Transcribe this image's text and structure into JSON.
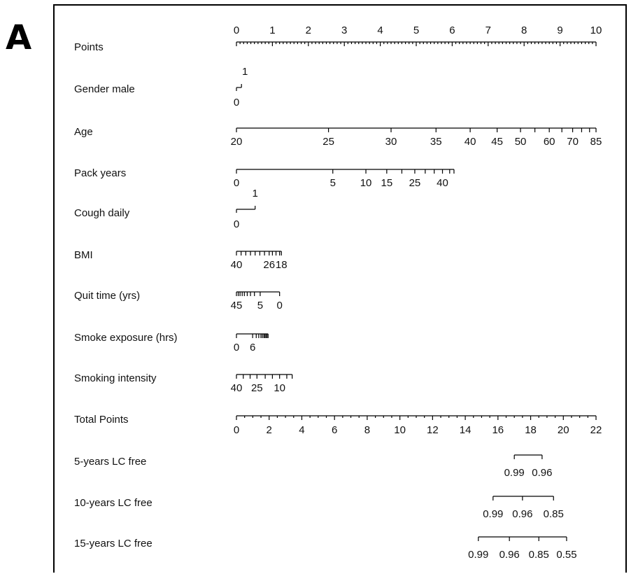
{
  "panel_label": "A",
  "chart_data": {
    "type": "nomogram",
    "title": "",
    "rows": [
      {
        "name": "Points",
        "label": "Points",
        "kind": "points",
        "domain": [
          0,
          10
        ],
        "tick_labels": [
          0,
          1,
          2,
          3,
          4,
          5,
          6,
          7,
          8,
          9,
          10
        ],
        "minor_step": 0.1
      },
      {
        "name": "Gender",
        "label": "Gender male",
        "kind": "binary",
        "levels": [
          {
            "value": "0",
            "points": 0
          },
          {
            "value": "1",
            "points": 0.14
          }
        ]
      },
      {
        "name": "Age",
        "label": "Age",
        "kind": "continuous",
        "ticks": [
          {
            "value": 20,
            "points": 0
          },
          {
            "value": 25,
            "points": 2.56
          },
          {
            "value": 30,
            "points": 4.3
          },
          {
            "value": 35,
            "points": 5.55
          },
          {
            "value": 40,
            "points": 6.5
          },
          {
            "value": 45,
            "points": 7.25
          },
          {
            "value": 50,
            "points": 7.9
          },
          {
            "value": 55,
            "points": 8.3
          },
          {
            "value": 60,
            "points": 8.7
          },
          {
            "value": 65,
            "points": 9.05
          },
          {
            "value": 70,
            "points": 9.35
          },
          {
            "value": 75,
            "points": 9.6
          },
          {
            "value": 80,
            "points": 9.82
          },
          {
            "value": 85,
            "points": 10
          }
        ],
        "labels": [
          20,
          25,
          30,
          35,
          40,
          45,
          50,
          60,
          70,
          85
        ]
      },
      {
        "name": "PackYears",
        "label": "Pack years",
        "kind": "continuous",
        "ticks": [
          {
            "value": 0,
            "points": 0
          },
          {
            "value": 5,
            "points": 2.68
          },
          {
            "value": 10,
            "points": 3.6
          },
          {
            "value": 15,
            "points": 4.18
          },
          {
            "value": 20,
            "points": 4.6
          },
          {
            "value": 25,
            "points": 4.96
          },
          {
            "value": 30,
            "points": 5.25
          },
          {
            "value": 35,
            "points": 5.5
          },
          {
            "value": 40,
            "points": 5.73
          },
          {
            "value": 45,
            "points": 5.93
          },
          {
            "value": 50,
            "points": 6.05
          }
        ],
        "labels": [
          0,
          5,
          10,
          15,
          25,
          40
        ]
      },
      {
        "name": "Cough",
        "label": "Cough daily",
        "kind": "binary",
        "levels": [
          {
            "value": "0",
            "points": 0
          },
          {
            "value": "1",
            "points": 0.52
          }
        ]
      },
      {
        "name": "BMI",
        "label": "BMI",
        "kind": "continuous",
        "ticks": [
          {
            "value": 40,
            "points": 0
          },
          {
            "value": 38,
            "points": 0.13
          },
          {
            "value": 36,
            "points": 0.26
          },
          {
            "value": 34,
            "points": 0.39
          },
          {
            "value": 32,
            "points": 0.52
          },
          {
            "value": 30,
            "points": 0.65
          },
          {
            "value": 28,
            "points": 0.78
          },
          {
            "value": 26,
            "points": 0.91
          },
          {
            "value": 24,
            "points": 1.0
          },
          {
            "value": 22,
            "points": 1.1
          },
          {
            "value": 20,
            "points": 1.2
          },
          {
            "value": 18,
            "points": 1.25
          }
        ],
        "labels": [
          40,
          26,
          18
        ]
      },
      {
        "name": "QuitTime",
        "label": "Quit time (yrs)",
        "kind": "continuous",
        "ticks": [
          {
            "value": 45,
            "points": 0
          },
          {
            "value": 40,
            "points": 0.05
          },
          {
            "value": 35,
            "points": 0.1
          },
          {
            "value": 30,
            "points": 0.16
          },
          {
            "value": 25,
            "points": 0.22
          },
          {
            "value": 20,
            "points": 0.3
          },
          {
            "value": 15,
            "points": 0.39
          },
          {
            "value": 10,
            "points": 0.5
          },
          {
            "value": 5,
            "points": 0.66
          },
          {
            "value": 0,
            "points": 1.2
          }
        ],
        "labels": [
          45,
          5,
          0
        ]
      },
      {
        "name": "SmokeExposure",
        "label": "Smoke exposure (hrs)",
        "kind": "continuous",
        "ticks": [
          {
            "value": 0,
            "points": 0
          },
          {
            "value": 6,
            "points": 0.45
          },
          {
            "value": 8,
            "points": 0.55
          },
          {
            "value": 10,
            "points": 0.62
          },
          {
            "value": 12,
            "points": 0.68
          },
          {
            "value": 14,
            "points": 0.72
          },
          {
            "value": 16,
            "points": 0.76
          },
          {
            "value": 18,
            "points": 0.79
          },
          {
            "value": 20,
            "points": 0.82
          },
          {
            "value": 22,
            "points": 0.85
          },
          {
            "value": 24,
            "points": 0.88
          }
        ],
        "labels": [
          0,
          6
        ]
      },
      {
        "name": "SmokingIntensity",
        "label": "Smoking intensity",
        "kind": "continuous",
        "ticks": [
          {
            "value": 40,
            "points": 0
          },
          {
            "value": 35,
            "points": 0.19
          },
          {
            "value": 30,
            "points": 0.38
          },
          {
            "value": 25,
            "points": 0.57
          },
          {
            "value": 20,
            "points": 0.8
          },
          {
            "value": 15,
            "points": 1.0
          },
          {
            "value": 10,
            "points": 1.2
          },
          {
            "value": 5,
            "points": 1.4
          },
          {
            "value": 0,
            "points": 1.55
          }
        ],
        "labels": [
          40,
          25,
          10
        ]
      },
      {
        "name": "TotalPoints",
        "label": "Total Points",
        "kind": "points",
        "domain": [
          0,
          22
        ],
        "tick_labels": [
          0,
          2,
          4,
          6,
          8,
          10,
          12,
          14,
          16,
          18,
          20,
          22
        ],
        "minor_step": 0.5
      },
      {
        "name": "LC5",
        "label": "5-years LC free",
        "kind": "probability",
        "ticks": [
          {
            "value": 0.99,
            "total": 17.0
          },
          {
            "value": 0.96,
            "total": 18.7
          }
        ],
        "labels": [
          0.99,
          0.96
        ],
        "label_format": 2
      },
      {
        "name": "LC10",
        "label": "10-years LC free",
        "kind": "probability",
        "ticks": [
          {
            "value": 0.99,
            "total": 15.7
          },
          {
            "value": 0.96,
            "total": 17.5
          },
          {
            "value": 0.85,
            "total": 19.4
          }
        ],
        "labels": [
          0.99,
          0.96,
          0.85
        ],
        "label_format": 2
      },
      {
        "name": "LC15",
        "label": "15-years LC free",
        "kind": "probability",
        "ticks": [
          {
            "value": 0.99,
            "total": 14.8
          },
          {
            "value": 0.96,
            "total": 16.7
          },
          {
            "value": 0.85,
            "total": 18.5
          },
          {
            "value": 0.55,
            "total": 20.2
          }
        ],
        "labels": [
          0.99,
          0.96,
          0.85,
          0.55
        ],
        "label_format": 2
      }
    ]
  }
}
